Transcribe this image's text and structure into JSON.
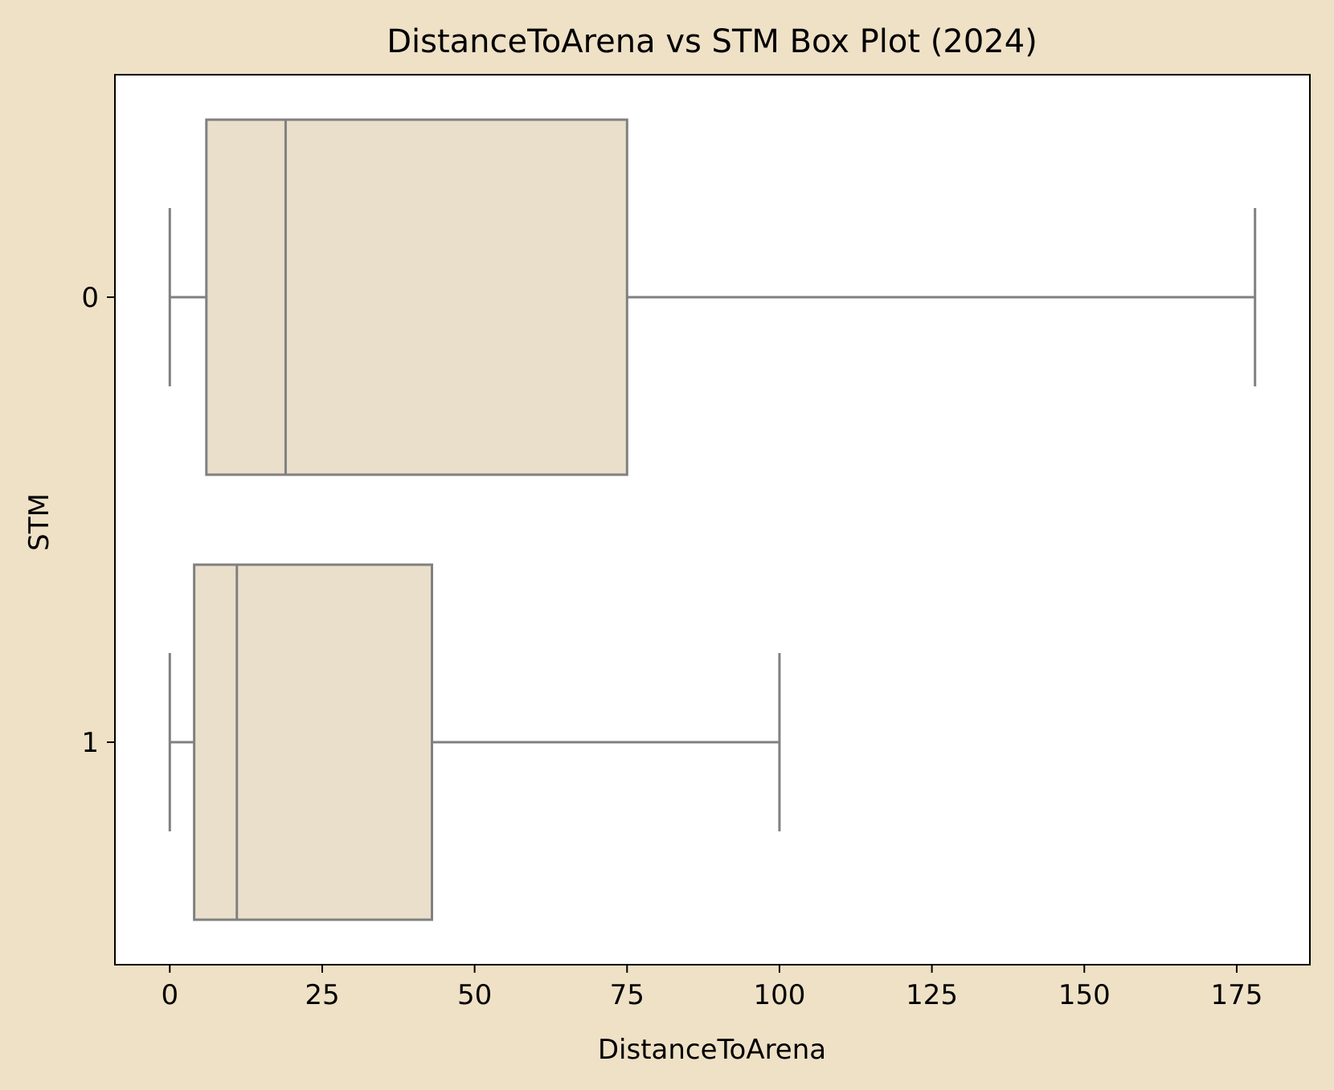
{
  "chart_data": {
    "type": "box",
    "orientation": "horizontal",
    "title": "DistanceToArena vs STM Box Plot (2024)",
    "xlabel": "DistanceToArena",
    "ylabel": "STM",
    "xlim": [
      -9,
      187
    ],
    "xticks": [
      0,
      25,
      50,
      75,
      100,
      125,
      150,
      175
    ],
    "categories": [
      "0",
      "1"
    ],
    "boxes": [
      {
        "category": "0",
        "whisker_low": 0,
        "q1": 6,
        "median": 19,
        "q3": 75,
        "whisker_high": 178
      },
      {
        "category": "1",
        "whisker_low": 0,
        "q1": 4,
        "median": 11,
        "q3": 43,
        "whisker_high": 100
      }
    ],
    "grid": false,
    "legend": "none",
    "colors": {
      "figure_background": "#efe1c6",
      "plot_background": "#ffffff",
      "box_fill": "#eadfca",
      "box_line": "#808080",
      "axis": "#000000",
      "text": "#000000"
    }
  }
}
